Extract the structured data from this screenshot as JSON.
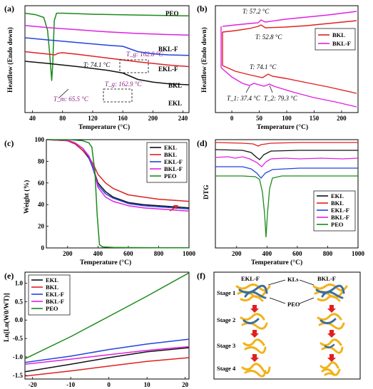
{
  "panels": [
    {
      "label": "(a)",
      "chart_data": {
        "type": "line",
        "xlabel": "Temperature (°C)",
        "ylabel": "Heatflow (Endo down)",
        "xlim": [
          30,
          248
        ],
        "ylim": [
          0,
          10
        ],
        "xticks": [
          40,
          80,
          120,
          160,
          200,
          240
        ],
        "yticks_shown": false,
        "series": [
          {
            "name": "PEO",
            "color": "#1a8a1a",
            "x": [
              30,
              45,
              55,
              60,
              63,
              65.5,
              67,
              69,
              72,
              80,
              120,
              160,
              200,
              248
            ],
            "y": [
              9.3,
              9.15,
              8.9,
              7.7,
              5.4,
              3.0,
              4.6,
              8.6,
              9.3,
              9.3,
              9.2,
              9.15,
              9.1,
              9.05
            ]
          },
          {
            "name": "BKL-F",
            "color": "#e020e0",
            "x": [
              30,
              60,
              100,
              140,
              180,
              220,
              248
            ],
            "y": [
              8.15,
              7.95,
              7.75,
              7.55,
              7.4,
              7.3,
              7.25
            ]
          },
          {
            "name": "EKL-F",
            "color": "#2244dd",
            "x": [
              30,
              60,
              100,
              140,
              160,
              180,
              200,
              220,
              248
            ],
            "y": [
              7.0,
              6.8,
              6.55,
              6.3,
              6.2,
              5.7,
              5.5,
              5.4,
              5.35
            ]
          },
          {
            "name": "BKL",
            "color": "#e02020",
            "x": [
              30,
              50,
              70,
              74,
              80,
              100,
              140,
              180,
              220,
              248
            ],
            "y": [
              5.7,
              5.55,
              5.4,
              5.55,
              5.6,
              5.45,
              5.1,
              4.75,
              4.45,
              4.3
            ]
          },
          {
            "name": "EKL",
            "color": "#111111",
            "x": [
              30,
              60,
              100,
              140,
              160,
              180,
              200,
              220,
              248
            ],
            "y": [
              4.8,
              4.6,
              4.3,
              3.95,
              3.7,
              3.1,
              2.85,
              2.7,
              2.6
            ]
          }
        ],
        "annotations": [
          "T: 74.1 °C",
          "T_m: 65.5 °C",
          "T_g: 162.8 °C",
          "T_g: 162.9 °C"
        ]
      }
    },
    {
      "label": "(b)",
      "chart_data": {
        "type": "line",
        "xlabel": "Temperature (°C)",
        "ylabel": "Heatflow (Endo down)",
        "xlim": [
          -30,
          230
        ],
        "ylim": [
          0,
          10
        ],
        "xticks": [
          0,
          50,
          100,
          150,
          200
        ],
        "yticks_shown": false,
        "series": [
          {
            "name": "BKL",
            "color": "#e02020"
          },
          {
            "name": "BKL-F",
            "color": "#e020e0"
          }
        ],
        "annotations": [
          "T: 57.2 °C",
          "T: 52.8 °C",
          "T: 74.1 °C",
          "T_1: 37.4 °C",
          "T_2: 79.3 °C"
        ]
      }
    },
    {
      "label": "(c)",
      "chart_data": {
        "type": "line",
        "xlabel": "Temperature (°C)",
        "ylabel": "Weight (%)",
        "xlim": [
          60,
          1000
        ],
        "ylim": [
          0,
          100
        ],
        "xticks": [
          200,
          400,
          600,
          800,
          1000
        ],
        "xtick_labels": [
          "200",
          "400",
          "600",
          "800",
          "1000"
        ],
        "yticks": [
          0,
          20,
          40,
          60,
          80,
          100
        ],
        "series": [
          {
            "name": "EKL",
            "color": "#111111",
            "x": [
              60,
              200,
              250,
              300,
              340,
              370,
              400,
              450,
              500,
              600,
              700,
              800,
              900,
              1000
            ],
            "y": [
              100,
              99,
              96,
              90,
              83,
              73,
              60,
              52,
              47,
              42,
              40,
              39,
              38,
              37
            ]
          },
          {
            "name": "BKL",
            "color": "#e02020",
            "x": [
              60,
              200,
              250,
              300,
              340,
              370,
              400,
              450,
              500,
              600,
              700,
              800,
              900,
              1000
            ],
            "y": [
              100,
              99,
              96,
              90,
              84,
              77,
              68,
              60,
              55,
              49,
              47,
              45,
              44,
              43
            ]
          },
          {
            "name": "EKL-F",
            "color": "#2244dd",
            "x": [
              60,
              200,
              250,
              300,
              340,
              370,
              400,
              450,
              500,
              600,
              700,
              800,
              900,
              1000
            ],
            "y": [
              100,
              99.5,
              97,
              92,
              84,
              72,
              58,
              50,
              46,
              41,
              39,
              38,
              37,
              36
            ]
          },
          {
            "name": "BKL-F",
            "color": "#e020e0",
            "x": [
              60,
              200,
              250,
              300,
              340,
              370,
              400,
              450,
              500,
              600,
              700,
              800,
              900,
              1000
            ],
            "y": [
              100,
              99.5,
              97,
              92,
              85,
              75,
              56,
              47,
              43,
              39,
              37,
              36,
              35,
              34
            ]
          },
          {
            "name": "PEO",
            "color": "#1a8a1a",
            "x": [
              60,
              200,
              300,
              340,
              360,
              380,
              395,
              410,
              430,
              500,
              600,
              800,
              1000
            ],
            "y": [
              100,
              100,
              99,
              97,
              93,
              70,
              30,
              3,
              1,
              0.5,
              0.3,
              0.2,
              0.2
            ]
          }
        ]
      }
    },
    {
      "label": "(d)",
      "chart_data": {
        "type": "line",
        "xlabel": "Temperature (°C)",
        "ylabel": "DTG",
        "xlim": [
          60,
          1000
        ],
        "xticks": [
          200,
          400,
          600,
          800,
          1000
        ],
        "yticks_shown": false,
        "series": [
          {
            "name": "EKL",
            "color": "#111111"
          },
          {
            "name": "BKL",
            "color": "#e02020"
          },
          {
            "name": "EKL-F",
            "color": "#2244dd"
          },
          {
            "name": "BKL-F",
            "color": "#e020e0"
          },
          {
            "name": "PEO",
            "color": "#1a8a1a"
          }
        ]
      }
    },
    {
      "label": "(e)",
      "chart_data": {
        "type": "line",
        "xlabel": "",
        "ylabel": "Ln[Ln(W0/WT)]",
        "xlim": [
          -22,
          21
        ],
        "ylim": [
          -1.6,
          1.3
        ],
        "xticks": [
          -20,
          -10,
          0,
          10,
          20
        ],
        "yticks": [
          -1.5,
          -1.0,
          -0.5,
          0.0,
          0.5,
          1.0
        ],
        "series": [
          {
            "name": "EKL",
            "color": "#111111",
            "x": [
              -22,
              -10,
              0,
              10,
              21
            ],
            "y": [
              -1.4,
              -1.2,
              -1.02,
              -0.86,
              -0.75
            ]
          },
          {
            "name": "BKL",
            "color": "#e02020",
            "x": [
              -22,
              -10,
              0,
              10,
              21
            ],
            "y": [
              -1.52,
              -1.38,
              -1.25,
              -1.12,
              -1.02
            ]
          },
          {
            "name": "EKL-F",
            "color": "#2244dd",
            "x": [
              -22,
              -10,
              0,
              10,
              21
            ],
            "y": [
              -1.15,
              -0.98,
              -0.8,
              -0.65,
              -0.52
            ]
          },
          {
            "name": "BKL-F",
            "color": "#e020e0",
            "x": [
              -22,
              -10,
              0,
              10,
              21
            ],
            "y": [
              -1.2,
              -1.06,
              -0.94,
              -0.82,
              -0.72
            ]
          },
          {
            "name": "PEO",
            "color": "#1a8a1a",
            "x": [
              -22,
              -10,
              0,
              10,
              21
            ],
            "y": [
              -1.05,
              -0.45,
              0.1,
              0.65,
              1.28
            ]
          }
        ]
      }
    },
    {
      "label": "(f)",
      "diagram": {
        "series_labels": [
          "EKL-F",
          "BKL-F"
        ],
        "callouts": [
          "KLs",
          "PEO"
        ],
        "stages": [
          "Stage 1",
          "Stage 2",
          "Stage 3",
          "Stage 4"
        ]
      }
    }
  ]
}
